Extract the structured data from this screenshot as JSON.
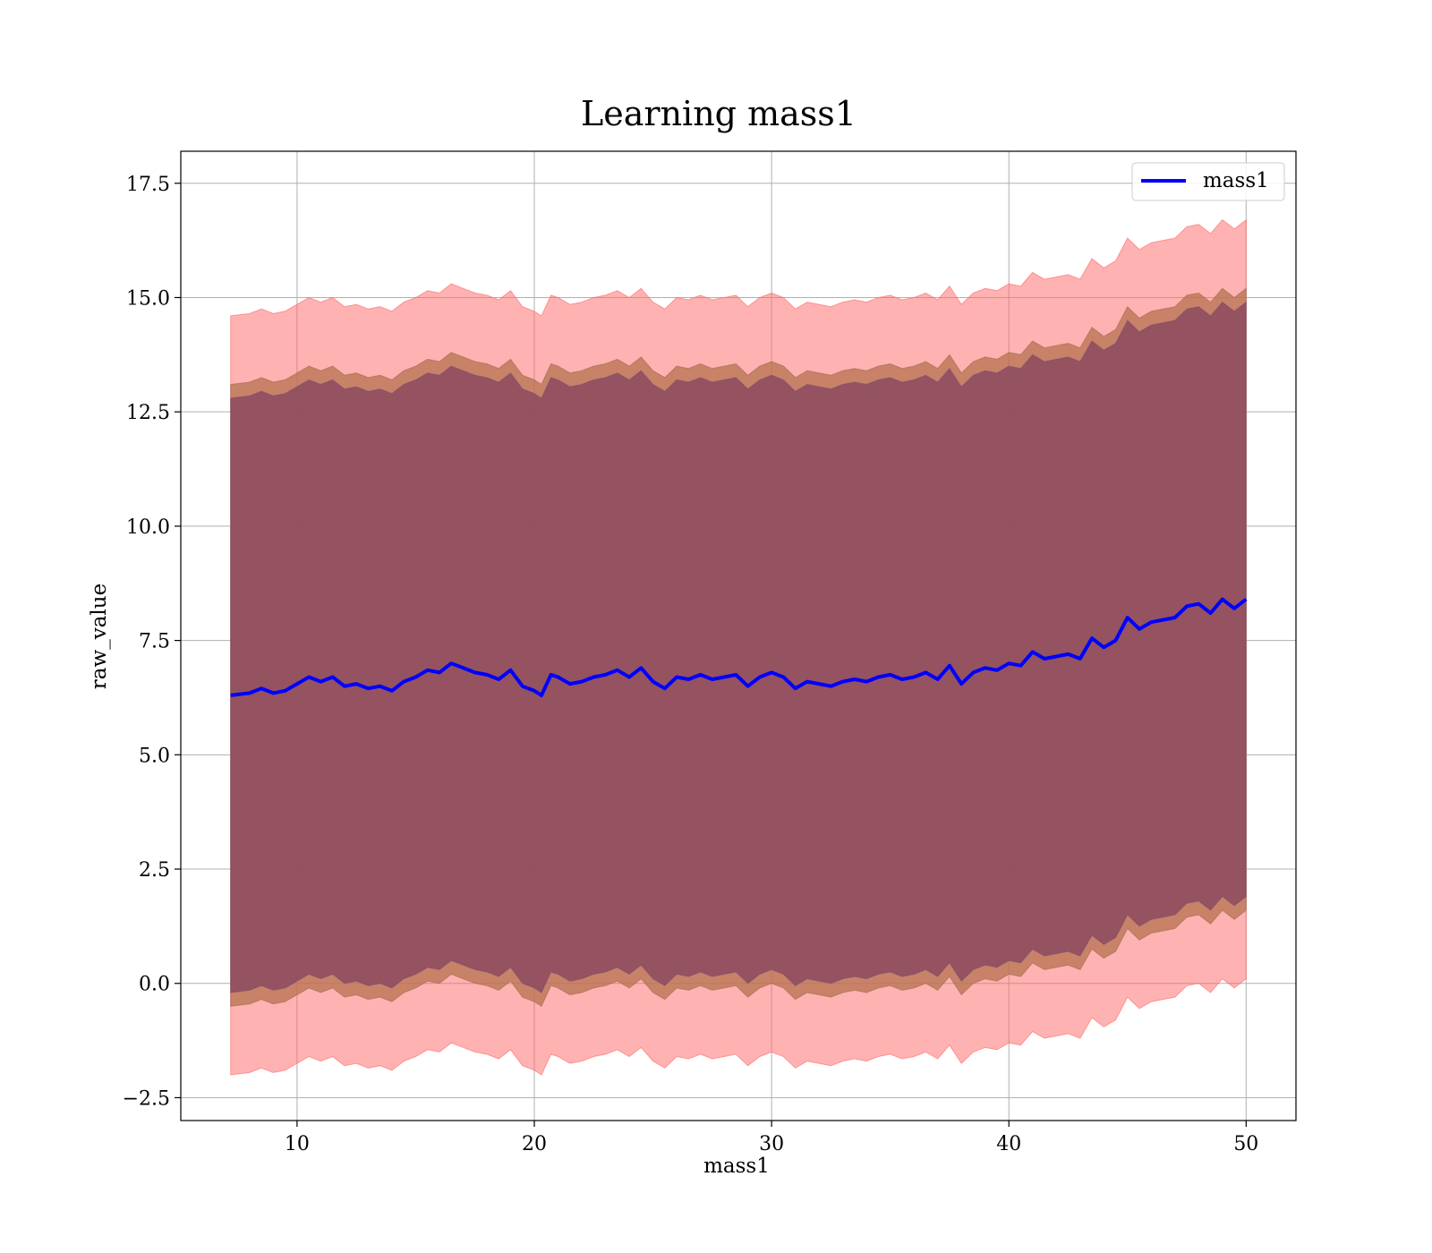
{
  "chart_data": {
    "type": "line",
    "title": "Learning mass1",
    "xlabel": "mass1",
    "ylabel": "raw_value",
    "xlim": [
      5.1,
      52.1
    ],
    "ylim": [
      -3.0,
      18.2
    ],
    "xticks": [
      10,
      20,
      30,
      40,
      50
    ],
    "xtick_labels": [
      "10",
      "20",
      "30",
      "40",
      "50"
    ],
    "yticks": [
      -2.5,
      0.0,
      2.5,
      5.0,
      7.5,
      10.0,
      12.5,
      15.0,
      17.5
    ],
    "ytick_labels": [
      "−2.5",
      "0.0",
      "2.5",
      "5.0",
      "7.5",
      "10.0",
      "12.5",
      "15.0",
      "17.5"
    ],
    "grid": true,
    "legend_position": "top-right",
    "colors": {
      "line": "#0000ff",
      "band_outer": "#ff6666",
      "band_middle": "#b5724f",
      "band_inner": "#8f4d60",
      "grid": "#b0b0b0"
    },
    "x": [
      7.2,
      8.0,
      8.5,
      9.0,
      9.5,
      10.0,
      10.5,
      11.0,
      11.5,
      12.0,
      12.5,
      13.0,
      13.5,
      14.0,
      14.5,
      15.0,
      15.5,
      16.0,
      16.5,
      17.0,
      17.5,
      18.0,
      18.5,
      19.0,
      19.5,
      20.0,
      20.3,
      20.7,
      21.0,
      21.5,
      22.0,
      22.5,
      23.0,
      23.5,
      24.0,
      24.5,
      25.0,
      25.5,
      26.0,
      26.5,
      27.0,
      27.5,
      28.0,
      28.5,
      29.0,
      29.5,
      30.0,
      30.5,
      31.0,
      31.5,
      32.0,
      32.5,
      33.0,
      33.5,
      34.0,
      34.5,
      35.0,
      35.5,
      36.0,
      36.5,
      37.0,
      37.5,
      38.0,
      38.5,
      39.0,
      39.5,
      40.0,
      40.5,
      41.0,
      41.5,
      42.0,
      42.5,
      43.0,
      43.5,
      44.0,
      44.5,
      45.0,
      45.5,
      46.0,
      46.5,
      47.0,
      47.5,
      48.0,
      48.5,
      49.0,
      49.5,
      50.0
    ],
    "series": [
      {
        "name": "mass1",
        "values": [
          6.3,
          6.35,
          6.45,
          6.35,
          6.4,
          6.55,
          6.7,
          6.6,
          6.7,
          6.5,
          6.55,
          6.45,
          6.5,
          6.4,
          6.6,
          6.7,
          6.85,
          6.8,
          7.0,
          6.9,
          6.8,
          6.75,
          6.65,
          6.85,
          6.5,
          6.4,
          6.3,
          6.75,
          6.7,
          6.55,
          6.6,
          6.7,
          6.75,
          6.85,
          6.7,
          6.9,
          6.6,
          6.45,
          6.7,
          6.65,
          6.75,
          6.65,
          6.7,
          6.75,
          6.5,
          6.7,
          6.8,
          6.7,
          6.45,
          6.6,
          6.55,
          6.5,
          6.6,
          6.65,
          6.6,
          6.7,
          6.75,
          6.65,
          6.7,
          6.8,
          6.65,
          6.95,
          6.55,
          6.8,
          6.9,
          6.85,
          7.0,
          6.95,
          7.25,
          7.1,
          7.15,
          7.2,
          7.1,
          7.55,
          7.35,
          7.5,
          8.0,
          7.75,
          7.9,
          7.95,
          8.0,
          8.25,
          8.3,
          8.1,
          8.4,
          8.2,
          8.4
        ]
      }
    ],
    "bands": [
      {
        "role": "outer",
        "offset": 8.3
      },
      {
        "role": "middle",
        "offset": 6.8
      },
      {
        "role": "inner",
        "offset": 6.5
      }
    ]
  }
}
